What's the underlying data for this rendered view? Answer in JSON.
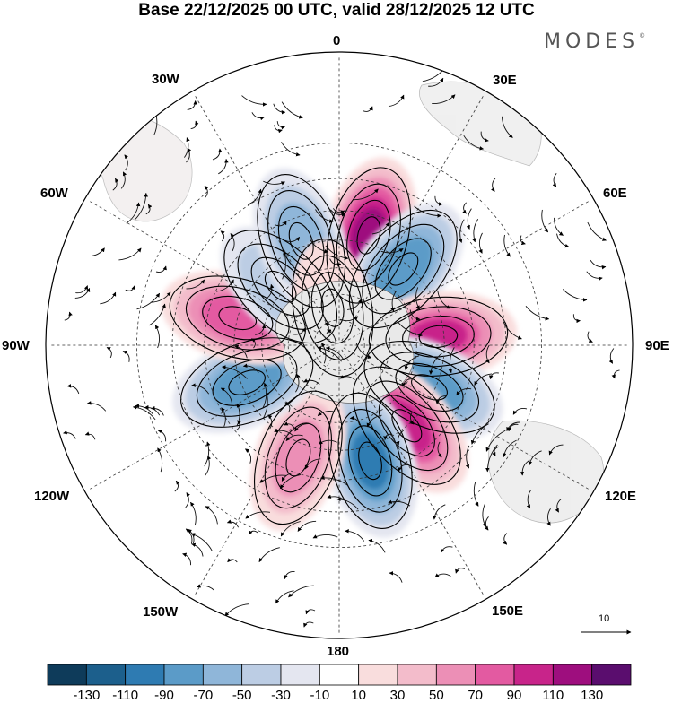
{
  "title": "Base 22/12/2025 00 UTC, valid 28/12/2025 12 UTC",
  "brand": "MODES",
  "brand_mark": "©",
  "longitude_labels": {
    "lon0": "0",
    "lon30e": "30E",
    "lon60e": "60E",
    "lon90e": "90E",
    "lon120e": "120E",
    "lon150e": "150E",
    "lon180": "180",
    "lon150w": "150W",
    "lon120w": "120W",
    "lon90w": "90W",
    "lon60w": "60W",
    "lon30w": "30W"
  },
  "vector_scale": {
    "value": "10"
  },
  "colorbar": {
    "colors": [
      "#0e3b5a",
      "#1c5f8c",
      "#2e7bb2",
      "#5b9bc8",
      "#8fb6d9",
      "#bccde4",
      "#e4e6f0",
      "#ffffff",
      "#f9dddd",
      "#f3bccb",
      "#ec8fb6",
      "#e35aa1",
      "#c8248a",
      "#9e0e7e",
      "#5a0d6e"
    ],
    "tick_labels": [
      "-130",
      "-110",
      "-90",
      "-70",
      "-50",
      "-30",
      "-10",
      "10",
      "30",
      "50",
      "70",
      "90",
      "110",
      "130"
    ]
  },
  "anomaly_centers": [
    {
      "id": "wave-pos-1",
      "lon_deg": 15,
      "lat_deg": -47,
      "value": 120
    },
    {
      "id": "wave-neg-1",
      "lon_deg": 40,
      "lat_deg": -52,
      "value": -85
    },
    {
      "id": "wave-pos-2",
      "lon_deg": 85,
      "lat_deg": -52,
      "value": 95
    },
    {
      "id": "wave-neg-2",
      "lon_deg": 115,
      "lat_deg": -52,
      "value": -85
    },
    {
      "id": "wave-pos-3",
      "lon_deg": 140,
      "lat_deg": -50,
      "value": 100
    },
    {
      "id": "wave-neg-3",
      "lon_deg": 165,
      "lat_deg": -45,
      "value": -95
    },
    {
      "id": "wave-pos-4",
      "lon_deg": -160,
      "lat_deg": -45,
      "value": 60
    },
    {
      "id": "wave-neg-4",
      "lon_deg": -112,
      "lat_deg": -52,
      "value": -85
    },
    {
      "id": "wave-pos-5",
      "lon_deg": -75,
      "lat_deg": -50,
      "value": 85
    },
    {
      "id": "wave-neg-5",
      "lon_deg": -45,
      "lat_deg": -58,
      "value": -45
    },
    {
      "id": "wave-neg-6",
      "lon_deg": -20,
      "lat_deg": -48,
      "value": -60
    },
    {
      "id": "wave-pos-6",
      "lon_deg": -10,
      "lat_deg": -75,
      "value": 25
    }
  ]
}
